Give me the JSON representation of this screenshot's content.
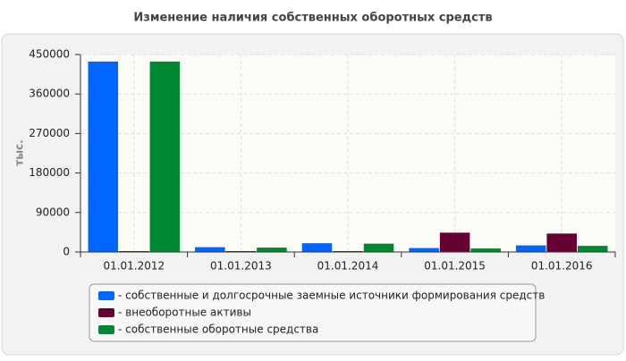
{
  "chart_data": {
    "type": "bar",
    "title": "Изменение наличия собственных оборотных средств",
    "y_label": "тыс.",
    "categories": [
      "01.01.2012",
      "01.01.2013",
      "01.01.2014",
      "01.01.2015",
      "01.01.2016"
    ],
    "series": [
      {
        "name": "- собственные и долгосрочные заемные источники формирования средств",
        "color": "#0066ff",
        "values": [
          434000,
          11000,
          20000,
          9000,
          15000
        ]
      },
      {
        "name": "- внеоборотные активы",
        "color": "#660033",
        "values": [
          2000,
          2000,
          2000,
          44000,
          42000
        ]
      },
      {
        "name": "- собственные оборотные средства",
        "color": "#008833",
        "values": [
          434000,
          10000,
          19000,
          8000,
          14000
        ]
      }
    ],
    "ylim": [
      0,
      450000
    ],
    "yticks": [
      0,
      90000,
      180000,
      270000,
      360000,
      450000
    ],
    "grid": true,
    "legend": "bottom"
  }
}
